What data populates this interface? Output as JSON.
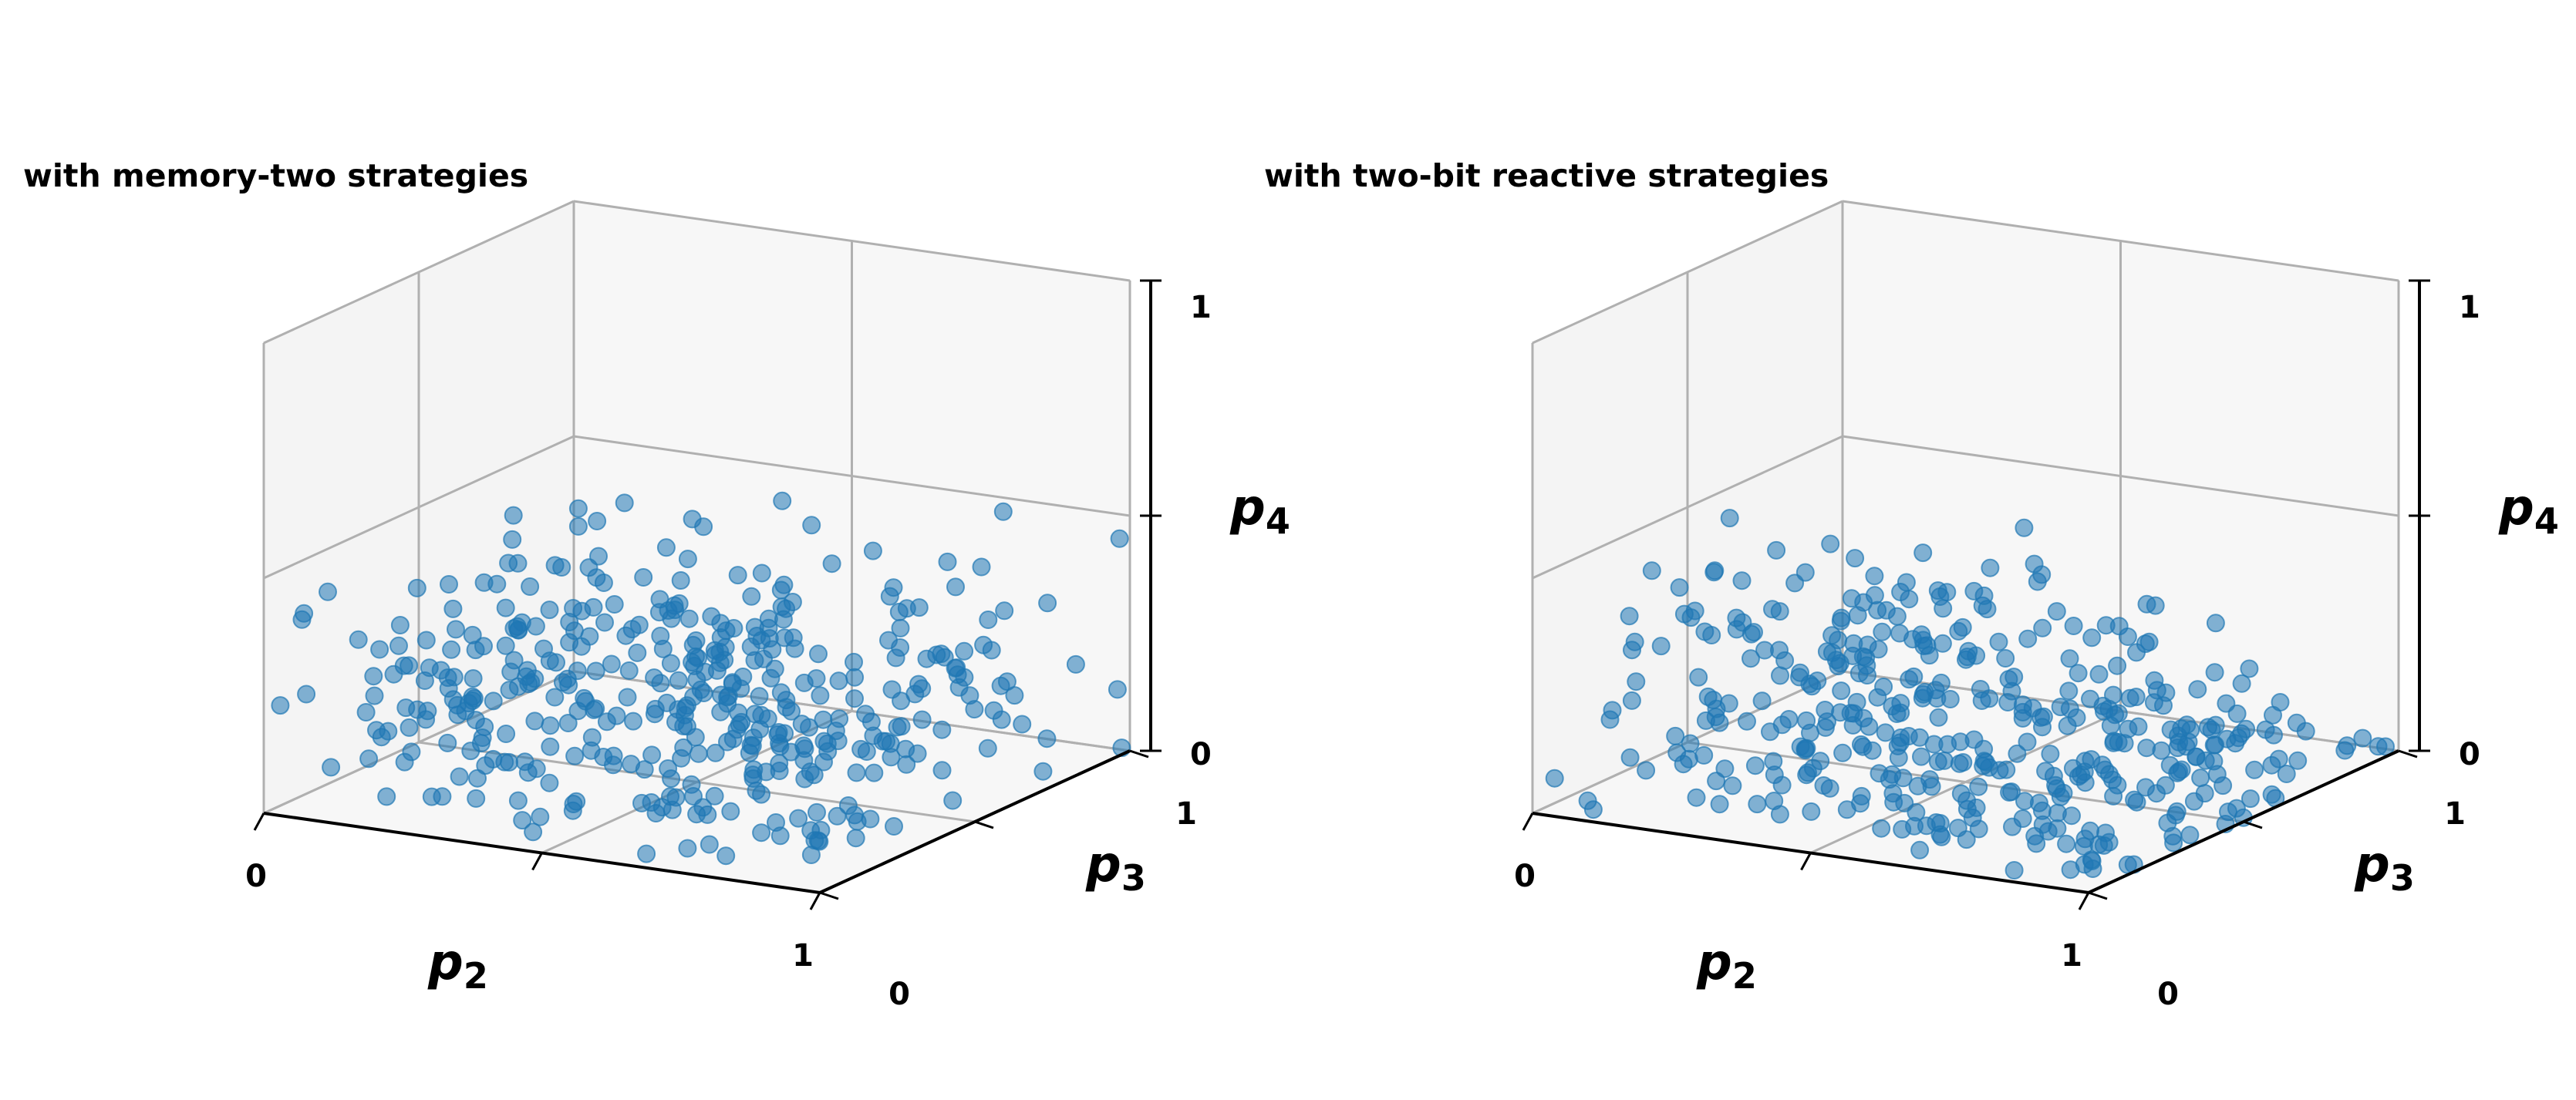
{
  "chart_data": [
    {
      "type": "scatter3d",
      "title": "with memory-two strategies",
      "xlabel": "p",
      "xlabel_sub": "2",
      "ylabel": "p",
      "ylabel_sub": "3",
      "zlabel": "p",
      "zlabel_sub": "4",
      "xlim": [
        0,
        1
      ],
      "ylim": [
        0,
        1
      ],
      "zlim": [
        0,
        1
      ],
      "x_tick_labels": [
        "0",
        "1"
      ],
      "y_tick_labels": [
        "0",
        "1"
      ],
      "z_tick_labels": [
        "0",
        "1"
      ],
      "grid": true,
      "point_color": "#1f77b4",
      "point_alpha": 0.55,
      "point_count": 420,
      "z_range_of_points": [
        0,
        0.55
      ],
      "shape": "points fill the whole p2-p3 square up to roughly half of p4"
    },
    {
      "type": "scatter3d",
      "title": "with two-bit reactive strategies",
      "xlabel": "p",
      "xlabel_sub": "2",
      "ylabel": "p",
      "ylabel_sub": "3",
      "zlabel": "p",
      "zlabel_sub": "4",
      "xlim": [
        0,
        1
      ],
      "ylim": [
        0,
        1
      ],
      "zlim": [
        0,
        1
      ],
      "x_tick_labels": [
        "0",
        "1"
      ],
      "y_tick_labels": [
        "0",
        "1"
      ],
      "z_tick_labels": [
        "0",
        "1"
      ],
      "grid": true,
      "point_color": "#1f77b4",
      "point_alpha": 0.55,
      "point_count": 420,
      "z_range_of_points": [
        0,
        0.55
      ],
      "shape": "points fill a cone-like region that tapers toward high p2"
    }
  ]
}
